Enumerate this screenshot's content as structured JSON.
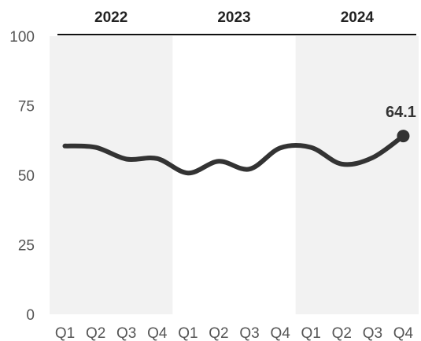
{
  "chart_data": {
    "type": "line",
    "title": "",
    "xlabel": "",
    "ylabel": "",
    "ylim": [
      0,
      100
    ],
    "yticks": [
      "0",
      "25",
      "50",
      "75",
      "100"
    ],
    "groups": [
      {
        "label": "2022",
        "shaded": true
      },
      {
        "label": "2023",
        "shaded": false
      },
      {
        "label": "2024",
        "shaded": true
      }
    ],
    "categories": [
      "Q1",
      "Q2",
      "Q3",
      "Q4",
      "Q1",
      "Q2",
      "Q3",
      "Q4",
      "Q1",
      "Q2",
      "Q3",
      "Q4"
    ],
    "values": [
      60.5,
      60.0,
      55.8,
      56.0,
      50.8,
      55.0,
      52.2,
      59.8,
      60.0,
      54.0,
      56.3,
      64.1
    ],
    "end_label": "64.1",
    "grid": false,
    "colors": {
      "line": "#333333",
      "band": "#f2f2f2",
      "axis": "#111111",
      "tick": "#555555"
    }
  }
}
